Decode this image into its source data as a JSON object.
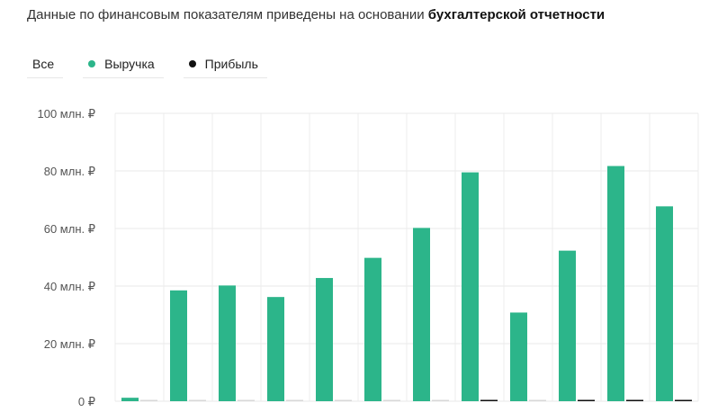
{
  "header": {
    "text_prefix": "Данные по финансовым показателям приведены на основании ",
    "text_bold": "бухгалтерской отчетности"
  },
  "filters": [
    {
      "label": "Все",
      "color": null
    },
    {
      "label": "Выручка",
      "color": "#2cb58a"
    },
    {
      "label": "Прибыль",
      "color": "#111111"
    }
  ],
  "chart_data": {
    "type": "bar",
    "ylim": [
      0,
      100
    ],
    "yticks": [
      0,
      20,
      40,
      60,
      80,
      100
    ],
    "ytick_labels": [
      "0 ₽",
      "20 млн. ₽",
      "40 млн. ₽",
      "60 млн. ₽",
      "80 млн. ₽",
      "100 млн. ₽"
    ],
    "grid": true,
    "series": [
      {
        "name": "Выручка",
        "color": "#2cb58a",
        "values": [
          1.2,
          38.5,
          40.2,
          36.2,
          42.8,
          49.8,
          60.2,
          79.5,
          30.8,
          52.3,
          81.7,
          67.7
        ]
      },
      {
        "name": "Прибыль",
        "color": "#111111",
        "values": [
          0,
          0,
          0,
          0,
          0,
          0,
          0,
          0.3,
          0,
          0.3,
          0.4,
          0.2
        ]
      }
    ]
  }
}
